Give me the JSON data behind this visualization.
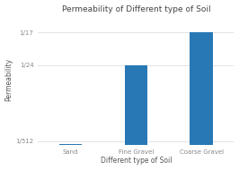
{
  "title": "Permeability of Different type of Soil",
  "xlabel": "Different type of Soil",
  "ylabel": "Permeability",
  "categories": [
    "Sand",
    "Fine Gravel",
    "Coarse Gravel"
  ],
  "values": [
    0.00015,
    0.0417,
    0.0588
  ],
  "bar_color": "#2878b5",
  "ytick_positions": [
    0.00195,
    0.0417,
    0.0588
  ],
  "ytick_labels": [
    "1/512",
    "1/24",
    "1/17"
  ],
  "ylim": [
    0,
    0.068
  ],
  "background": "#ffffff",
  "plot_bg": "#ffffff",
  "title_fontsize": 6.5,
  "axis_fontsize": 5.5,
  "tick_fontsize": 5,
  "bar_width": 0.35
}
